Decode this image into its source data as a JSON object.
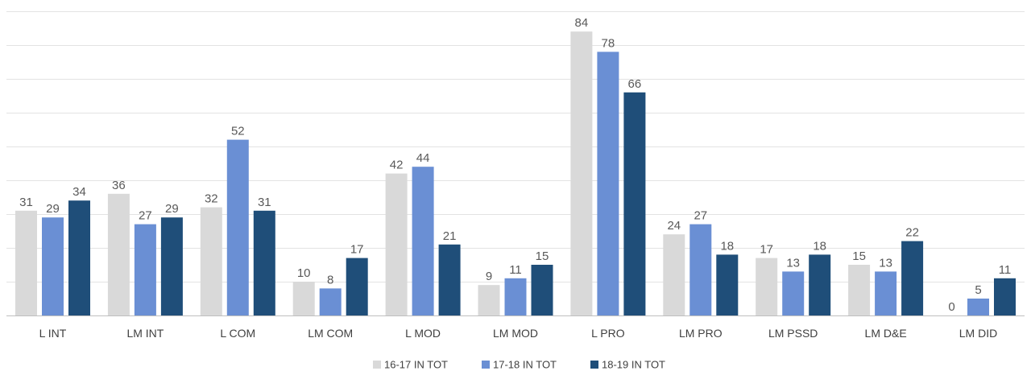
{
  "chart_data": {
    "type": "bar",
    "title": "",
    "xlabel": "",
    "ylabel": "",
    "ylim": [
      0,
      90
    ],
    "gridlines": [
      0,
      10,
      20,
      30,
      40,
      50,
      60,
      70,
      80,
      90
    ],
    "grid": true,
    "legend_position": "bottom",
    "categories": [
      "L INT",
      "LM INT",
      "L COM",
      "LM COM",
      "L MOD",
      "LM MOD",
      "L PRO",
      "LM PRO",
      "LM PSSD",
      "LM D&E",
      "LM DID"
    ],
    "series": [
      {
        "name": "16-17 IN TOT",
        "color": "#d9d9d9",
        "values": [
          31,
          36,
          32,
          10,
          42,
          9,
          84,
          24,
          17,
          15,
          0
        ]
      },
      {
        "name": "17-18 IN TOT",
        "color": "#6a8fd4",
        "values": [
          29,
          27,
          52,
          8,
          44,
          11,
          78,
          27,
          13,
          13,
          5
        ]
      },
      {
        "name": "18-19 IN TOT",
        "color": "#1f4e79",
        "values": [
          34,
          29,
          31,
          17,
          21,
          15,
          66,
          18,
          18,
          22,
          11
        ]
      }
    ]
  }
}
